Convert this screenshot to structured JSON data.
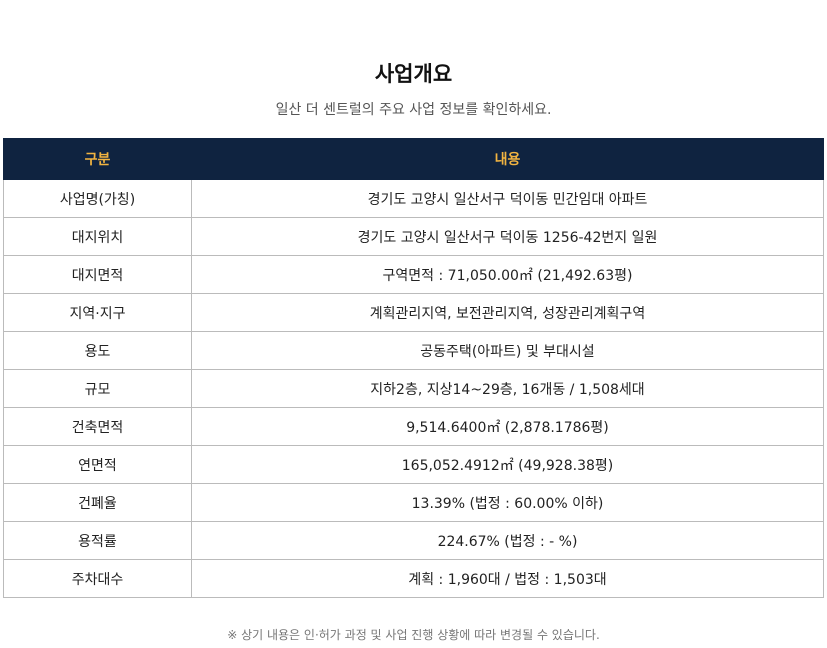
{
  "header": {
    "title": "사업개요",
    "subtitle": "일산 더 센트럴의 주요 사업 정보를 확인하세요."
  },
  "table": {
    "columns": [
      "구분",
      "내용"
    ],
    "rows": [
      [
        "사업명(가칭)",
        "경기도 고양시 일산서구 덕이동 민간임대 아파트"
      ],
      [
        "대지위치",
        "경기도 고양시 일산서구 덕이동 1256-42번지 일원"
      ],
      [
        "대지면적",
        "구역면적 : 71,050.00㎡ (21,492.63평)"
      ],
      [
        "지역·지구",
        "계획관리지역, 보전관리지역, 성장관리계획구역"
      ],
      [
        "용도",
        "공동주택(아파트) 및 부대시설"
      ],
      [
        "규모",
        "지하2층, 지상14~29층, 16개동 / 1,508세대"
      ],
      [
        "건축면적",
        "9,514.6400㎡ (2,878.1786평)"
      ],
      [
        "연면적",
        "165,052.4912㎡ (49,928.38평)"
      ],
      [
        "건폐율",
        "13.39% (법정 : 60.00% 이하)"
      ],
      [
        "용적률",
        "224.67% (법정 : - %)"
      ],
      [
        "주차대수",
        "계획 : 1,960대 / 법정 : 1,503대"
      ]
    ]
  },
  "footnote": "※ 상기 내용은 인·허가 과정 및 사업 진행 상황에 따라 변경될 수 있습니다."
}
